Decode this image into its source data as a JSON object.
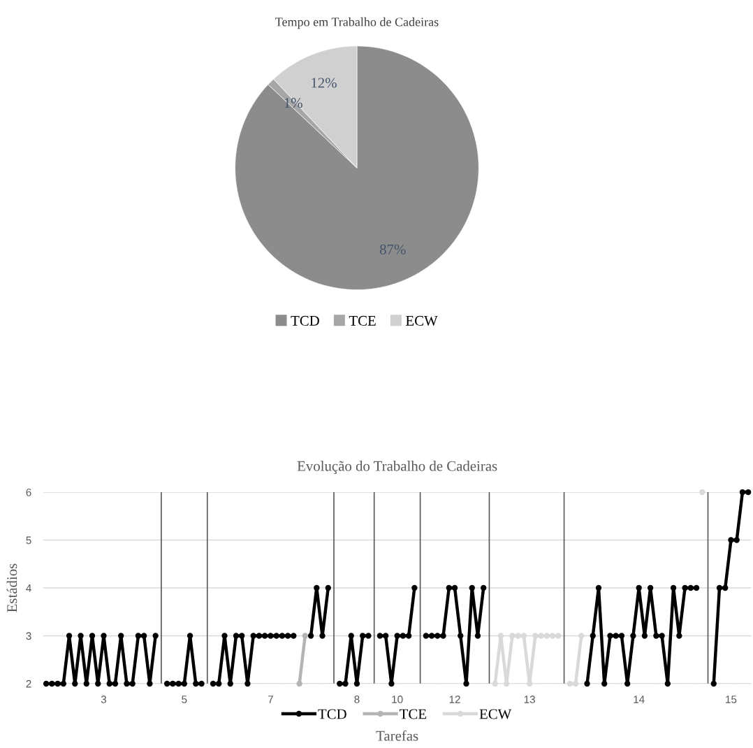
{
  "chart_data": [
    {
      "type": "pie",
      "title": "Tempo em Trabalho de Cadeiras",
      "categories": [
        "TCD",
        "TCE",
        "ECW"
      ],
      "values": [
        87,
        1,
        12
      ],
      "colors": [
        "#8c8c8c",
        "#a6a6a6",
        "#d0d0d0"
      ],
      "value_labels": [
        "87%",
        "1%",
        "12%"
      ],
      "legend": "bottom"
    },
    {
      "type": "line",
      "title": "Evolução do Trabalho de Cadeiras",
      "xlabel": "Tarefas",
      "ylabel": "Estádios",
      "categories": [
        null,
        null,
        null,
        null,
        null,
        null,
        null,
        null,
        null,
        null,
        "3",
        null,
        null,
        null,
        null,
        null,
        null,
        null,
        null,
        null,
        null,
        null,
        null,
        null,
        "5",
        null,
        null,
        null,
        null,
        null,
        null,
        null,
        null,
        null,
        null,
        null,
        null,
        null,
        null,
        "7",
        null,
        null,
        null,
        null,
        null,
        null,
        null,
        null,
        null,
        null,
        null,
        null,
        null,
        null,
        "8",
        null,
        null,
        null,
        null,
        null,
        null,
        "10",
        null,
        null,
        null,
        null,
        null,
        null,
        null,
        null,
        null,
        "12",
        null,
        null,
        null,
        null,
        null,
        null,
        null,
        null,
        null,
        null,
        null,
        null,
        "13",
        null,
        null,
        null,
        null,
        null,
        null,
        null,
        null,
        null,
        null,
        null,
        null,
        null,
        null,
        null,
        null,
        null,
        null,
        "14",
        null,
        null,
        null,
        null,
        null,
        null,
        null,
        null,
        null,
        null,
        null,
        null,
        null,
        null,
        null,
        "15",
        null,
        null,
        null
      ],
      "ylim": [
        2,
        6
      ],
      "yticks": [
        2,
        3,
        4,
        5,
        6
      ],
      "grid": "y",
      "legend": "bottom",
      "marker": "circle",
      "line_style": "solid",
      "series": [
        {
          "name": "TCD",
          "color": "#000000",
          "values": [
            2,
            2,
            2,
            2,
            3,
            2,
            3,
            2,
            3,
            2,
            3,
            2,
            2,
            3,
            2,
            2,
            3,
            3,
            2,
            3,
            null,
            2,
            2,
            2,
            2,
            3,
            2,
            2,
            null,
            2,
            2,
            3,
            2,
            3,
            3,
            2,
            3,
            3,
            3,
            3,
            3,
            3,
            3,
            3,
            null,
            null,
            3,
            4,
            3,
            4,
            null,
            2,
            2,
            3,
            2,
            3,
            3,
            null,
            3,
            3,
            2,
            3,
            3,
            3,
            4,
            null,
            3,
            3,
            3,
            3,
            4,
            4,
            3,
            2,
            4,
            3,
            4,
            null,
            null,
            null,
            null,
            null,
            null,
            null,
            null,
            null,
            null,
            null,
            null,
            null,
            null,
            null,
            null,
            null,
            2,
            3,
            4,
            2,
            3,
            3,
            3,
            2,
            3,
            4,
            3,
            4,
            3,
            3,
            2,
            4,
            3,
            4,
            4,
            4,
            null,
            null,
            2,
            4,
            4,
            5,
            5,
            6,
            6
          ]
        },
        {
          "name": "TCE",
          "color": "#b4b4b4",
          "values": [
            null,
            null,
            null,
            null,
            null,
            null,
            null,
            null,
            null,
            null,
            null,
            null,
            null,
            null,
            null,
            null,
            null,
            null,
            null,
            null,
            null,
            null,
            null,
            null,
            null,
            null,
            null,
            null,
            null,
            null,
            null,
            null,
            null,
            null,
            null,
            null,
            null,
            null,
            null,
            null,
            null,
            null,
            null,
            null,
            2,
            3,
            null,
            null,
            null,
            null,
            null,
            null,
            null,
            null,
            null,
            null,
            null,
            null,
            null,
            null,
            null,
            null,
            null,
            null,
            null,
            null,
            null,
            null,
            null,
            null,
            null,
            null,
            null,
            null,
            null,
            null,
            null,
            null,
            null,
            null,
            null,
            null,
            null,
            null,
            null,
            null,
            null,
            null,
            null,
            null,
            null,
            null,
            null,
            null,
            null,
            null,
            null,
            null,
            null,
            null,
            null,
            null,
            null,
            null,
            null,
            null,
            null,
            null,
            null,
            null,
            null,
            null,
            null,
            null,
            null,
            null,
            null,
            null,
            null,
            null,
            null,
            null,
            null
          ]
        },
        {
          "name": "ECW",
          "color": "#d9d9d9",
          "values": [
            null,
            null,
            null,
            null,
            null,
            null,
            null,
            null,
            null,
            null,
            null,
            null,
            null,
            null,
            null,
            null,
            null,
            null,
            null,
            null,
            null,
            null,
            null,
            null,
            null,
            null,
            null,
            null,
            null,
            null,
            null,
            null,
            null,
            null,
            null,
            null,
            null,
            null,
            null,
            null,
            null,
            null,
            null,
            null,
            null,
            null,
            null,
            null,
            null,
            null,
            null,
            null,
            null,
            null,
            null,
            null,
            null,
            null,
            null,
            null,
            null,
            null,
            null,
            null,
            null,
            null,
            null,
            null,
            null,
            null,
            null,
            null,
            null,
            null,
            null,
            null,
            null,
            null,
            2,
            3,
            2,
            3,
            3,
            3,
            2,
            3,
            3,
            3,
            3,
            3,
            null,
            2,
            2,
            3,
            null,
            null,
            null,
            null,
            null,
            null,
            null,
            null,
            null,
            null,
            null,
            null,
            null,
            null,
            null,
            null,
            null,
            null,
            null,
            null,
            6,
            null,
            null,
            null,
            null,
            null,
            null,
            null,
            null
          ]
        }
      ]
    }
  ]
}
